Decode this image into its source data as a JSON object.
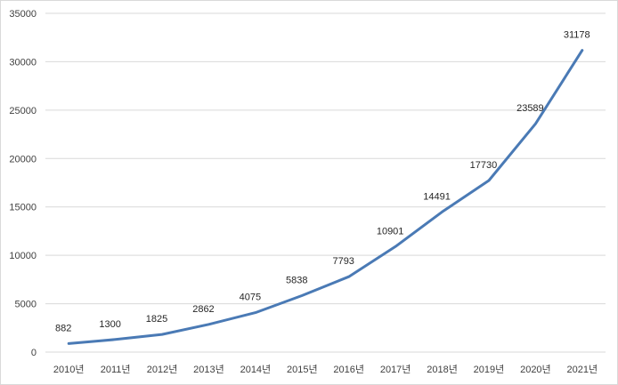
{
  "chart_data": {
    "type": "line",
    "title": "",
    "xlabel": "",
    "ylabel": "",
    "categories": [
      "2010년",
      "2011년",
      "2012년",
      "2013년",
      "2014년",
      "2015년",
      "2016년",
      "2017년",
      "2018년",
      "2019년",
      "2020년",
      "2021년"
    ],
    "series": [
      {
        "values": [
          882,
          1300,
          1825,
          2862,
          4075,
          5838,
          7793,
          10901,
          14491,
          17730,
          23589,
          31178
        ],
        "color": "#4a7ab5"
      }
    ],
    "ylim": [
      0,
      35000
    ],
    "yticks": [
      0,
      5000,
      10000,
      15000,
      20000,
      25000,
      30000,
      35000
    ],
    "ytick_labels": [
      "0",
      "5000",
      "10000",
      "15000",
      "20000",
      "25000",
      "30000",
      "35000"
    ],
    "data_labels": [
      "882",
      "1300",
      "1825",
      "2862",
      "4075",
      "5838",
      "7793",
      "10901",
      "14491",
      "17730",
      "23589",
      "31178"
    ],
    "grid": true,
    "gridline_color": "#d9d9d9",
    "legend": "none"
  }
}
